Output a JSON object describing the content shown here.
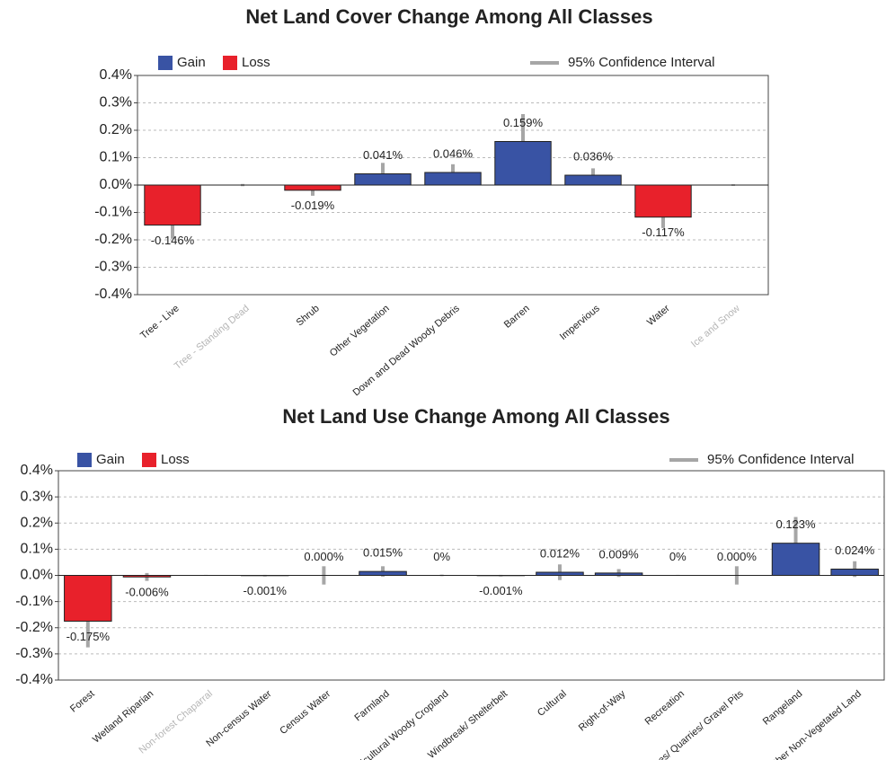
{
  "chart_data": [
    {
      "type": "bar",
      "title": "Net Land Cover Change Among All Classes",
      "legend": [
        {
          "name": "Gain",
          "color": "#3953a4"
        },
        {
          "name": "Loss",
          "color": "#e8212b"
        },
        {
          "name": "95% Confidence Interval",
          "color": "#a6a6a6"
        }
      ],
      "categories": [
        "Tree - Live",
        "Tree - Standing Dead",
        "Shrub",
        "Other Vegetation",
        "Down and Dead Woody Debris",
        "Barren",
        "Impervious",
        "Water",
        "Ice and Snow"
      ],
      "category_colors": [
        "#222222",
        "#b5b5b5",
        "#222222",
        "#222222",
        "#222222",
        "#222222",
        "#222222",
        "#222222",
        "#b5b5b5"
      ],
      "values": [
        -0.146,
        0,
        -0.019,
        0.041,
        0.046,
        0.159,
        0.036,
        -0.117,
        0
      ],
      "value_labels": [
        "-0.146%",
        null,
        "-0.019%",
        "0.041%",
        "0.046%",
        "0.159%",
        "0.036%",
        "-0.117%",
        null
      ],
      "errors": [
        0.05,
        0.004,
        0.02,
        0.04,
        0.03,
        0.1,
        0.025,
        0.04,
        0.003
      ],
      "ylim": [
        -0.4,
        0.4
      ],
      "yticks": [
        {
          "value": -0.4,
          "label": "-0.4%"
        },
        {
          "value": -0.3,
          "label": "-0.3%"
        },
        {
          "value": -0.2,
          "label": "-0.2%"
        },
        {
          "value": -0.1,
          "label": "-0.1%"
        },
        {
          "value": 0,
          "label": "0.0%"
        },
        {
          "value": 0.1,
          "label": "0.1%"
        },
        {
          "value": 0.2,
          "label": "0.2%"
        },
        {
          "value": 0.3,
          "label": "0.3%"
        },
        {
          "value": 0.4,
          "label": "0.4%"
        }
      ],
      "grid": true
    },
    {
      "type": "bar",
      "title": "Net Land Use Change Among All Classes",
      "legend": [
        {
          "name": "Gain",
          "color": "#3953a4"
        },
        {
          "name": "Loss",
          "color": "#e8212b"
        },
        {
          "name": "95% Confidence Interval",
          "color": "#a6a6a6"
        }
      ],
      "categories": [
        "Forest",
        "Wetland Riparian",
        "Non-forest Chaparral",
        "Non-census Water",
        "Census Water",
        "Farmland",
        "Agricultural Woody Cropland",
        "Windbreak/ Shelterbelt",
        "Cultural",
        "Right-of-Way",
        "Recreation",
        "Strip Mines/ Quarries/ Gravel Pits",
        "Rangeland",
        "Other Non-Vegetated Land"
      ],
      "category_colors": [
        "#222222",
        "#222222",
        "#b5b5b5",
        "#222222",
        "#222222",
        "#222222",
        "#222222",
        "#222222",
        "#222222",
        "#222222",
        "#222222",
        "#222222",
        "#222222",
        "#222222"
      ],
      "values": [
        -0.175,
        -0.006,
        0,
        -0.001,
        0.0,
        0.015,
        0,
        -0.001,
        0.012,
        0.009,
        0,
        0.0,
        0.123,
        0.024
      ],
      "value_labels": [
        "-0.175%",
        "-0.006%",
        null,
        "-0.001%",
        "0.000%",
        "0.015%",
        "0%",
        "-0.001%",
        "0.012%",
        "0.009%",
        "0%",
        "0.000%",
        "0.123%",
        "0.024%"
      ],
      "errors": [
        0.1,
        0.015,
        0.002,
        0.003,
        0.035,
        0.02,
        0.003,
        0.003,
        0.03,
        0.015,
        0.002,
        0.035,
        0.1,
        0.03
      ],
      "ylim": [
        -0.4,
        0.4
      ],
      "yticks": [
        {
          "value": -0.4,
          "label": "-0.4%"
        },
        {
          "value": -0.3,
          "label": "-0.3%"
        },
        {
          "value": -0.2,
          "label": "-0.2%"
        },
        {
          "value": -0.1,
          "label": "-0.1%"
        },
        {
          "value": 0,
          "label": "0.0%"
        },
        {
          "value": 0.1,
          "label": "0.1%"
        },
        {
          "value": 0.2,
          "label": "0.2%"
        },
        {
          "value": 0.3,
          "label": "0.3%"
        },
        {
          "value": 0.4,
          "label": "0.4%"
        }
      ],
      "grid": true
    }
  ]
}
